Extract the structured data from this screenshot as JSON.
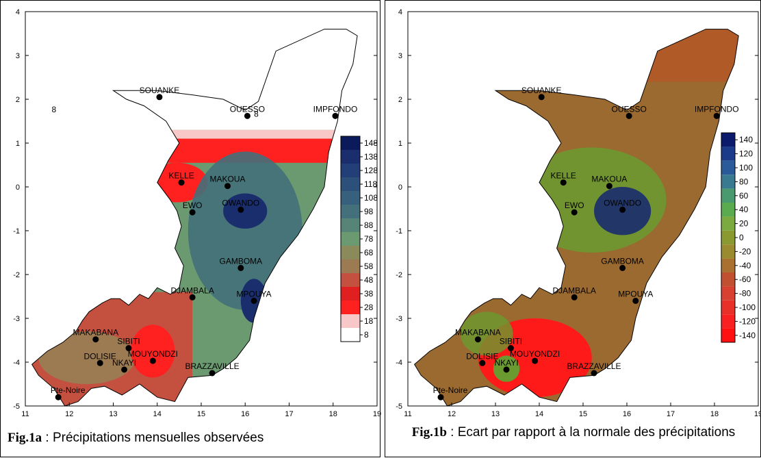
{
  "panels": [
    {
      "id": "a",
      "caption_fig": "Fig.1a",
      "caption_text": " : Précipitations mensuelles observées",
      "legend": {
        "labels": [
          "148",
          "138",
          "128",
          "118",
          "108",
          "98",
          "88",
          "78",
          "68",
          "58",
          "48",
          "38",
          "28",
          "18",
          "8"
        ],
        "colors": [
          "#0b1a5a",
          "#1a2e6e",
          "#223f78",
          "#2c5079",
          "#36607c",
          "#43707a",
          "#568578",
          "#6b9a70",
          "#8a8a5a",
          "#9c7a52",
          "#c45040",
          "#e02020",
          "#ff2020",
          "#f8c8c8",
          "#ffffff"
        ]
      },
      "map_colors": {
        "outline_fill": "#ffffff",
        "band_pink": "#f8c8c8",
        "band_red": "#ff2020",
        "brown": "#9c7a52",
        "rust": "#c45040",
        "green": "#6b9a70",
        "mid_blue": "#43707a",
        "deep_blue": "#1a2e6e"
      }
    },
    {
      "id": "b",
      "caption_fig": "Fig.1b",
      "caption_text": " : Ecart par rapport à la normale des précipitations",
      "legend": {
        "labels": [
          "140",
          "120",
          "100",
          "80",
          "60",
          "40",
          "20",
          "0",
          "-20",
          "-40",
          "-60",
          "-80",
          "-100",
          "-120",
          "-140"
        ],
        "colors": [
          "#0b1a6a",
          "#1a3a8a",
          "#2a5a9a",
          "#3a7a90",
          "#4a9a70",
          "#5aaa50",
          "#7aaa40",
          "#8a9a30",
          "#9a8a30",
          "#aa7030",
          "#c05030",
          "#d84030",
          "#e83028",
          "#f82020",
          "#ff1010"
        ]
      },
      "map_colors": {
        "base": "#9a6a30",
        "north": "#b05a28",
        "green": "#6a9a30",
        "deep_blue": "#1a2e6e",
        "red": "#ff1a1a"
      }
    }
  ],
  "axes": {
    "x_ticks": [
      "11",
      "12",
      "13",
      "14",
      "15",
      "16",
      "17",
      "18",
      "19"
    ],
    "y_ticks": [
      "4",
      "3",
      "2",
      "1",
      "0",
      "-1",
      "-2",
      "-3",
      "-4",
      "-5"
    ]
  },
  "cities": [
    {
      "name": "SOUANKE",
      "lon": 14.05,
      "lat": 2.05
    },
    {
      "name": "OUESSO",
      "lon": 16.05,
      "lat": 1.62
    },
    {
      "name": "IMPFONDO",
      "lon": 18.05,
      "lat": 1.62
    },
    {
      "name": "KELLE",
      "lon": 14.55,
      "lat": 0.1
    },
    {
      "name": "MAKOUA",
      "lon": 15.6,
      "lat": 0.02
    },
    {
      "name": "EWO",
      "lon": 14.8,
      "lat": -0.58
    },
    {
      "name": "OWANDO",
      "lon": 15.9,
      "lat": -0.52
    },
    {
      "name": "GAMBOMA",
      "lon": 15.9,
      "lat": -1.85
    },
    {
      "name": "DJAMBALA",
      "lon": 14.8,
      "lat": -2.52
    },
    {
      "name": "MPOUYA",
      "lon": 16.2,
      "lat": -2.6
    },
    {
      "name": "MAKABANA",
      "lon": 12.6,
      "lat": -3.48
    },
    {
      "name": "SIBITI",
      "lon": 13.35,
      "lat": -3.68
    },
    {
      "name": "DOLISIE",
      "lon": 12.7,
      "lat": -4.02
    },
    {
      "name": "NKAYI",
      "lon": 13.25,
      "lat": -4.17
    },
    {
      "name": "MOUYONDZI",
      "lon": 13.9,
      "lat": -3.97
    },
    {
      "name": "BRAZZAVILLE",
      "lon": 15.25,
      "lat": -4.25
    },
    {
      "name": "Pte-Noire",
      "lon": 11.75,
      "lat": -4.8
    }
  ],
  "contour_labels_a": [
    "8",
    "8"
  ]
}
